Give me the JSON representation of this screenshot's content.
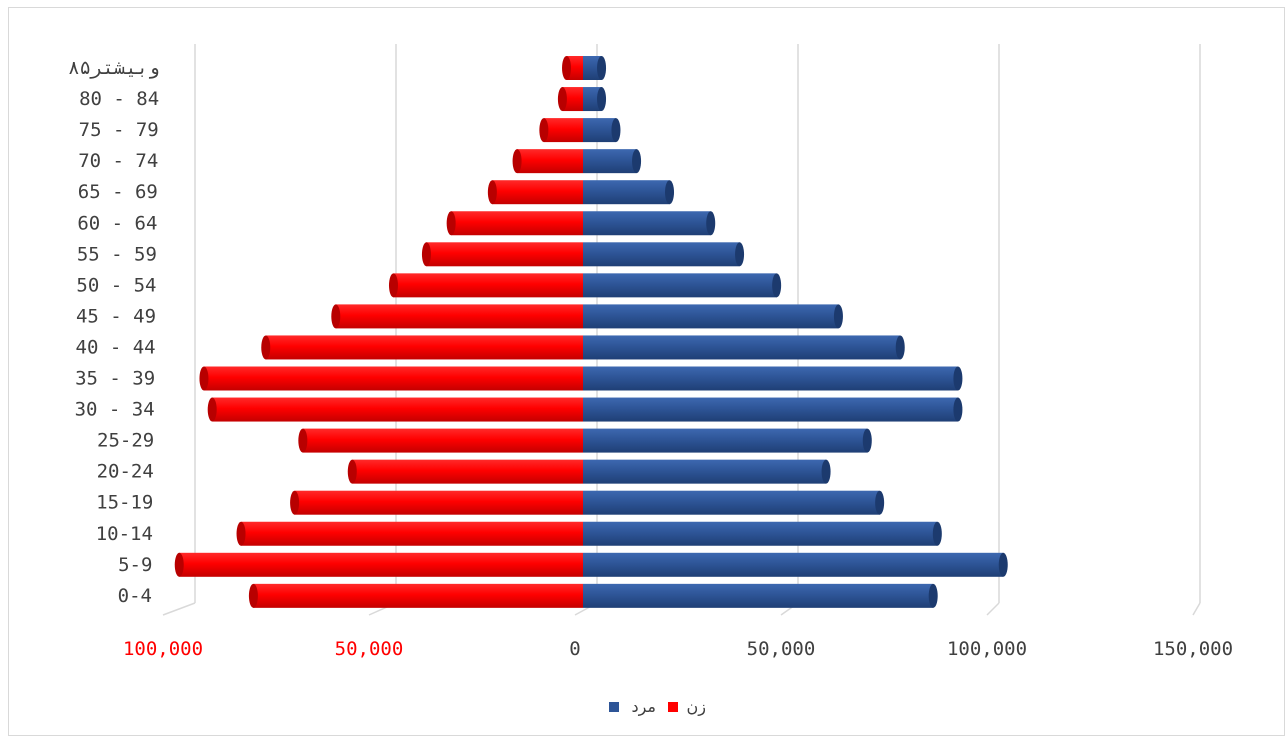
{
  "chart_data": {
    "type": "bar",
    "orientation": "horizontal",
    "layout": "population-pyramid",
    "categories": [
      "0-4",
      "5-9",
      "10-14",
      "15-19",
      "20-24",
      "25-29",
      "30 - 34",
      "35 - 39",
      "40 - 44",
      "45 - 49",
      "50 - 54",
      "55 - 59",
      "60 - 64",
      "65 - 69",
      "70 - 74",
      "75 - 79",
      "80 - 84",
      "۸۵وبیشتر"
    ],
    "series": [
      {
        "name": "مرد",
        "color": "#2e5597",
        "values": [
          85000,
          102000,
          86000,
          72000,
          59000,
          69000,
          91000,
          91000,
          77000,
          62000,
          47000,
          38000,
          31000,
          21000,
          13000,
          8000,
          4500,
          4500
        ]
      },
      {
        "name": "زن",
        "color": "#ff0000",
        "values": [
          -80000,
          -98000,
          -83000,
          -70000,
          -56000,
          -68000,
          -90000,
          -92000,
          -77000,
          -60000,
          -46000,
          -38000,
          -32000,
          -22000,
          -16000,
          -9500,
          -5000,
          -4000
        ]
      }
    ],
    "xlim": [
      -100000,
      150000
    ],
    "x_ticks": [
      {
        "value": -100000,
        "label": "100,000",
        "color": "#ff0000"
      },
      {
        "value": -50000,
        "label": "50,000",
        "color": "#ff0000"
      },
      {
        "value": 0,
        "label": "0",
        "color": "#404040"
      },
      {
        "value": 50000,
        "label": "50,000",
        "color": "#404040"
      },
      {
        "value": 100000,
        "label": "100,000",
        "color": "#404040"
      },
      {
        "value": 150000,
        "label": "150,000",
        "color": "#404040"
      }
    ],
    "grid": true,
    "legend": {
      "position": "bottom",
      "items": [
        {
          "name": "مرد",
          "color": "#2e5597"
        },
        {
          "name": "زن",
          "color": "#ff0000"
        }
      ]
    },
    "title": "",
    "xlabel": "",
    "ylabel": ""
  }
}
